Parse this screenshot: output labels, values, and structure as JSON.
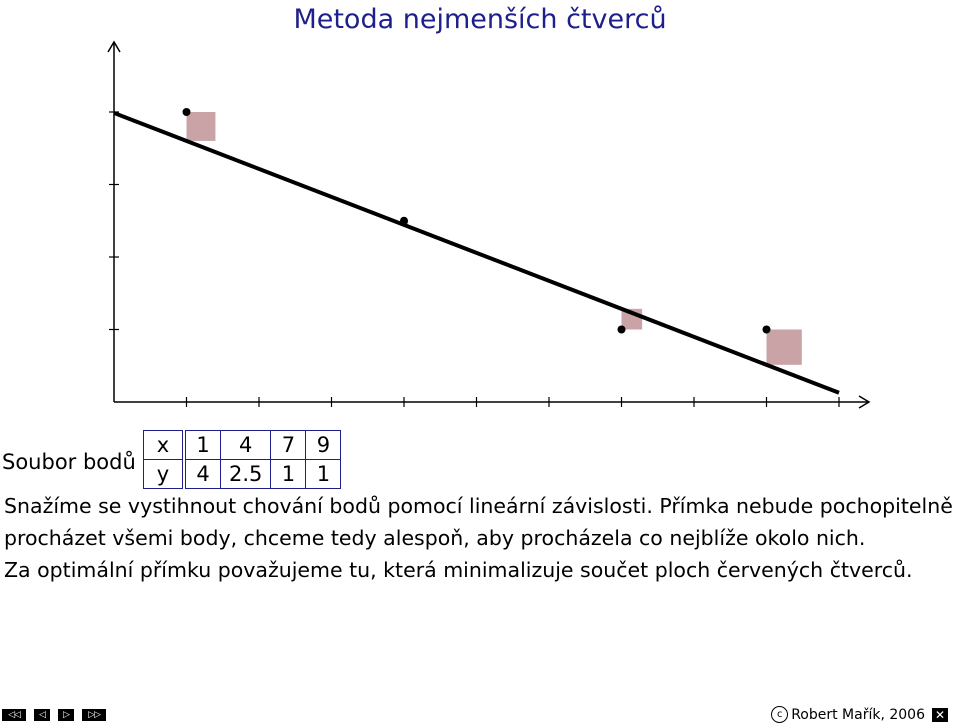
{
  "title": "Metoda nejmenších čtverců",
  "dataset_label": "Soubor bodů",
  "table": {
    "x_label": "x",
    "y_label": "y",
    "x_values": [
      "1",
      "4",
      "7",
      "9"
    ],
    "y_values": [
      "4",
      "2.5",
      "1",
      "1"
    ]
  },
  "paragraph": [
    "Snažíme se vystihnout chování bodů pomocí lineární závislosti. Přímka nebude pochopitelně",
    "procházet všemi body, chceme tedy alespoň, aby procházela co nejblíže okolo nich.",
    "Za optimální přímku považujeme tu, která minimalizuje součet ploch červených čtverců."
  ],
  "footer": {
    "copyright_symbol": "c",
    "author": "Robert Mařík, 2006",
    "close_symbol": "✕"
  },
  "nav_buttons": [
    "◁◁",
    "◁",
    "▷",
    "▷▷"
  ],
  "colors": {
    "title": "#1f1f8c",
    "table_border": "#1f1f8c",
    "square": "#c9a3a6",
    "line": "#000000"
  },
  "chart_data": {
    "type": "scatter",
    "points": [
      {
        "x": 1,
        "y": 4
      },
      {
        "x": 4,
        "y": 2.5
      },
      {
        "x": 7,
        "y": 1
      },
      {
        "x": 9,
        "y": 1
      }
    ],
    "fit_line": {
      "slope": -0.386,
      "intercept": 3.987
    },
    "xlim": [
      0,
      10
    ],
    "ylim": [
      0,
      4
    ],
    "x_ticks": [
      1,
      2,
      3,
      4,
      5,
      6,
      7,
      8,
      9,
      10
    ],
    "y_ticks": [
      1,
      2,
      3,
      4
    ],
    "grid": false,
    "squares": true
  }
}
